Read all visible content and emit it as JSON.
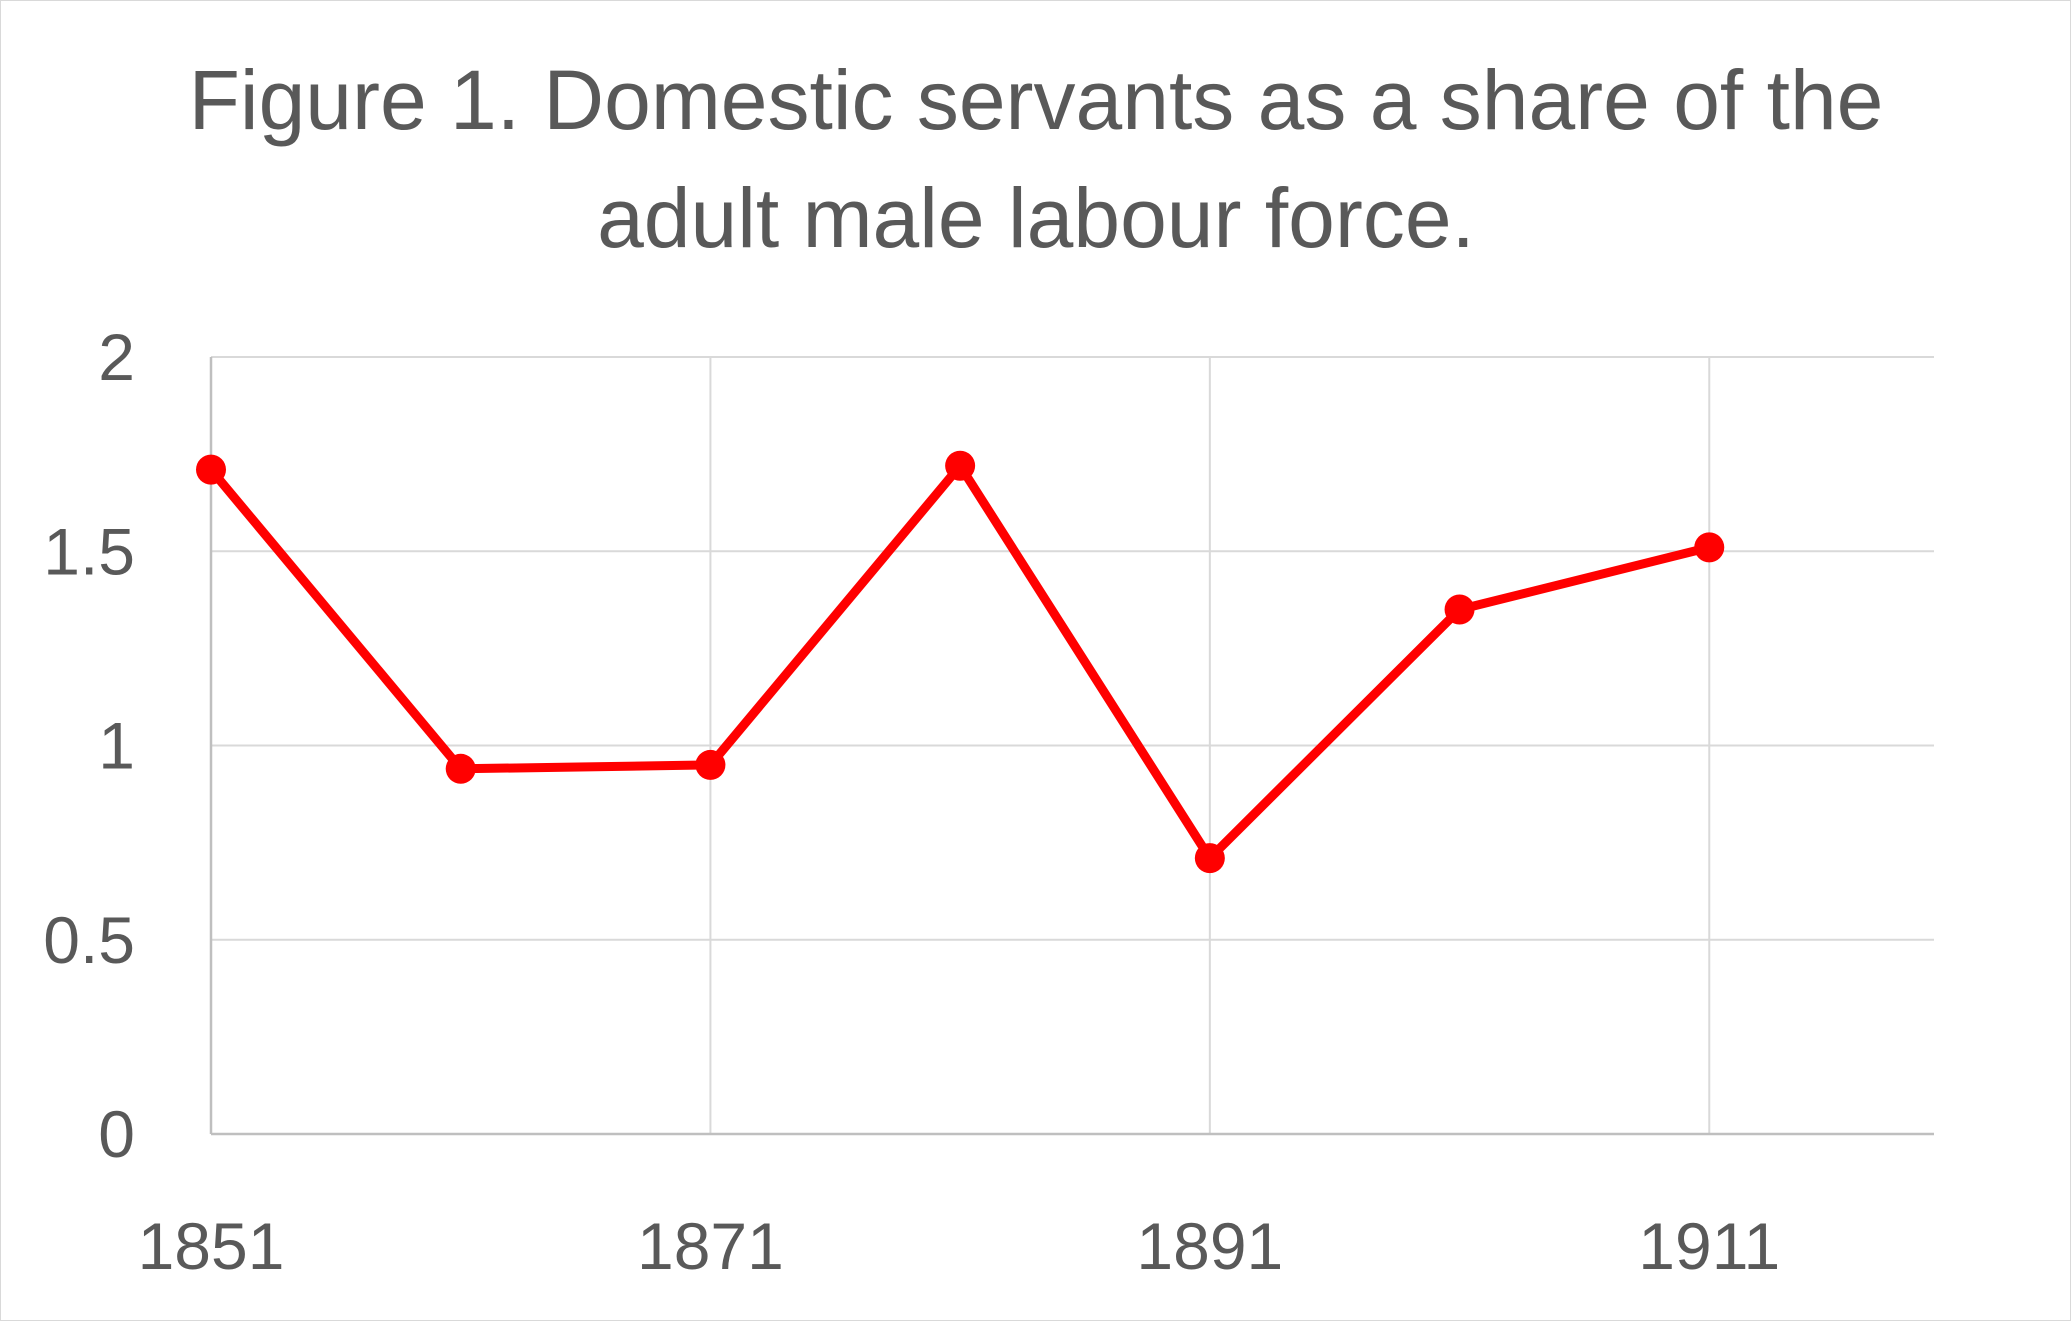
{
  "chart_data": {
    "type": "line",
    "title": "Figure 1. Domestic servants as a share of the adult male labour force.",
    "xlabel": "",
    "ylabel": "",
    "x": [
      1851,
      1861,
      1871,
      1881,
      1891,
      1901,
      1911
    ],
    "series": [
      {
        "values": [
          1.71,
          0.94,
          0.95,
          1.72,
          0.71,
          1.35,
          1.51
        ],
        "color": "#ff0000"
      }
    ],
    "xlim": [
      1851,
      1920
    ],
    "ylim": [
      0,
      2
    ],
    "x_ticks": [
      1851,
      1871,
      1891,
      1911
    ],
    "y_ticks": [
      0,
      0.5,
      1,
      1.5,
      2
    ],
    "y_tick_labels": [
      "0",
      "0.5",
      "1",
      "1.5",
      "2"
    ],
    "grid": true,
    "legend": "none",
    "colors": {
      "line": "#ff0000",
      "grid": "#d9d9d9",
      "axis": "#bfbfbf",
      "text": "#595959"
    }
  }
}
